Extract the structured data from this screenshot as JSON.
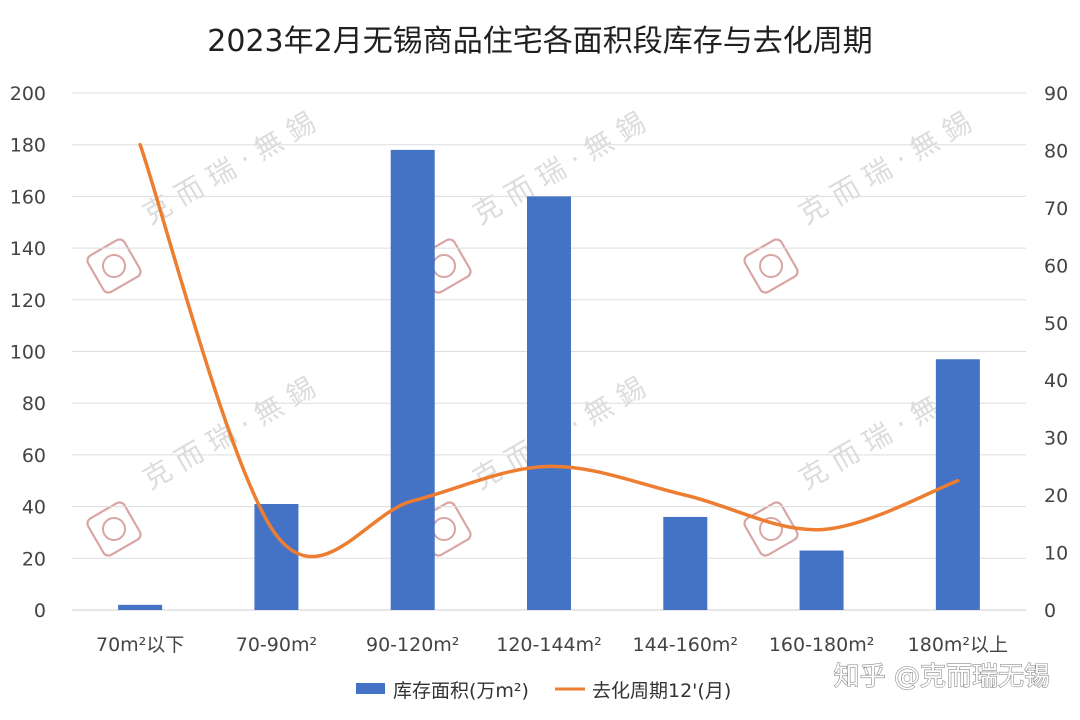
{
  "chart_data": {
    "type": "bar",
    "title": "2023年2月无锡商品住宅各面积段库存与去化周期",
    "categories": [
      "70m²以下",
      "70-90m²",
      "90-120m²",
      "120-144m²",
      "144-160m²",
      "160-180m²",
      "180m²以上"
    ],
    "series": [
      {
        "name": "库存面积(万m²)",
        "type": "bar",
        "axis": "left",
        "color": "#4472C4",
        "values": [
          2,
          41,
          178,
          160,
          36,
          23,
          97
        ]
      },
      {
        "name": "去化周期12'(月)",
        "type": "line",
        "smooth": true,
        "axis": "right",
        "color": "#ED7D31",
        "values": [
          81,
          13,
          19,
          25,
          20,
          14,
          22.5
        ]
      }
    ],
    "left_axis": {
      "ylim": [
        0,
        200
      ],
      "ticks": [
        0,
        20,
        40,
        60,
        80,
        100,
        120,
        140,
        160,
        180,
        200
      ]
    },
    "right_axis": {
      "ylim": [
        0,
        90
      ],
      "ticks": [
        0,
        10,
        20,
        30,
        40,
        50,
        60,
        70,
        80,
        90
      ]
    },
    "grid": true,
    "legend": "bottom"
  },
  "watermark": {
    "text": "克 而 瑞 · 無 錫",
    "color": "#d7d7d7",
    "logo_color": "#d9a4a4"
  },
  "credit": {
    "text": "知乎 @克而瑞无锡"
  }
}
